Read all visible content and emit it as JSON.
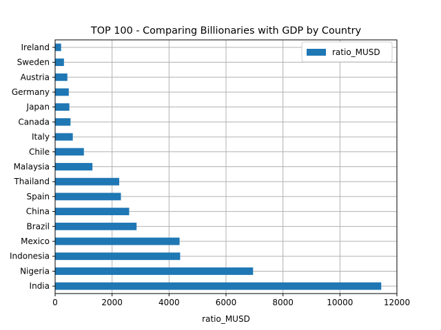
{
  "chart_data": {
    "type": "bar",
    "orientation": "horizontal",
    "title": "TOP 100 - Comparing Billionaries with GDP by Country",
    "xlabel": "ratio_MUSD",
    "ylabel": "",
    "xlim": [
      0,
      12000
    ],
    "xticks": [
      0,
      2000,
      4000,
      6000,
      8000,
      10000,
      12000
    ],
    "grid": true,
    "legend_position": "top-right",
    "categories": [
      "India",
      "Nigeria",
      "Indonesia",
      "Mexico",
      "Brazil",
      "China",
      "Spain",
      "Thailand",
      "Malaysia",
      "Chile",
      "Italy",
      "Canada",
      "Japan",
      "Germany",
      "Austria",
      "Sweden",
      "Ireland"
    ],
    "series": [
      {
        "name": "ratio_MUSD",
        "color": "#1f77b4",
        "values": [
          11450,
          6950,
          4390,
          4370,
          2860,
          2600,
          2310,
          2250,
          1310,
          1010,
          620,
          540,
          500,
          480,
          430,
          310,
          210
        ]
      }
    ]
  }
}
